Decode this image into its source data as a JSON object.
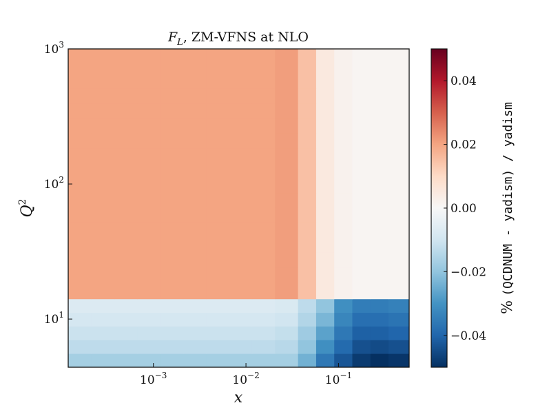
{
  "chart_data": {
    "type": "heatmap",
    "title": "F_L, ZM-VFNS at NLO",
    "title_parts": {
      "symbol": "F",
      "subscript": "L",
      "rest": ", ZM-VFNS at NLO"
    },
    "xlabel": "x",
    "ylabel": "Q",
    "ylabel_superscript": "2",
    "x_scale": "log",
    "y_scale": "log",
    "xlim": [
      0.00012,
      0.58
    ],
    "ylim": [
      4.4,
      1000
    ],
    "x_ticks": [
      {
        "base": "10",
        "exp": "−3",
        "value": 0.001
      },
      {
        "base": "10",
        "exp": "−2",
        "value": 0.01
      },
      {
        "base": "10",
        "exp": "−1",
        "value": 0.1
      }
    ],
    "y_ticks": [
      {
        "base": "10",
        "exp": "1",
        "value": 10
      },
      {
        "base": "10",
        "exp": "2",
        "value": 100
      },
      {
        "base": "10",
        "exp": "3",
        "value": 1000
      }
    ],
    "x_edges": [
      0.00012,
      0.000213,
      0.000377,
      0.000668,
      0.00118,
      0.00209,
      0.00371,
      0.00657,
      0.0116,
      0.0206,
      0.0365,
      0.0573,
      0.0899,
      0.141,
      0.221,
      0.347,
      0.58
    ],
    "y_edges": [
      4.4,
      5.55,
      7.01,
      8.85,
      11.17,
      14.1,
      20,
      24.1,
      31.1,
      40.1,
      51.7,
      66.7,
      86,
      110.9,
      143,
      184.5,
      237.9,
      306.8,
      395.7,
      510.3,
      658.2,
      848.8,
      1000
    ],
    "values": [
      [
        -0.017,
        -0.017,
        -0.017,
        -0.017,
        -0.017,
        -0.017,
        -0.017,
        -0.017,
        -0.017,
        -0.017,
        -0.024,
        -0.036,
        -0.043,
        -0.048,
        -0.05,
        -0.049
      ],
      [
        -0.013,
        -0.013,
        -0.013,
        -0.013,
        -0.013,
        -0.013,
        -0.013,
        -0.013,
        -0.013,
        -0.014,
        -0.02,
        -0.031,
        -0.039,
        -0.044,
        -0.045,
        -0.044
      ],
      [
        -0.011,
        -0.011,
        -0.011,
        -0.011,
        -0.011,
        -0.011,
        -0.011,
        -0.011,
        -0.011,
        -0.012,
        -0.018,
        -0.027,
        -0.036,
        -0.041,
        -0.041,
        -0.04
      ],
      [
        -0.009,
        -0.009,
        -0.009,
        -0.009,
        -0.009,
        -0.009,
        -0.009,
        -0.009,
        -0.009,
        -0.01,
        -0.015,
        -0.023,
        -0.033,
        -0.038,
        -0.038,
        -0.037
      ],
      [
        -0.007,
        -0.007,
        -0.007,
        -0.007,
        -0.007,
        -0.007,
        -0.007,
        -0.007,
        -0.007,
        -0.008,
        -0.013,
        -0.02,
        -0.031,
        -0.035,
        -0.035,
        -0.034
      ],
      [
        0.02,
        0.02,
        0.02,
        0.02,
        0.02,
        0.02,
        0.02,
        0.02,
        0.02,
        0.021,
        0.015,
        0.005,
        0.002,
        0.001,
        0.001,
        0.001
      ],
      [
        0.02,
        0.02,
        0.02,
        0.02,
        0.02,
        0.02,
        0.02,
        0.02,
        0.02,
        0.021,
        0.015,
        0.005,
        0.002,
        0.001,
        0.001,
        0.001
      ],
      [
        0.02,
        0.02,
        0.02,
        0.02,
        0.02,
        0.02,
        0.02,
        0.02,
        0.02,
        0.021,
        0.015,
        0.005,
        0.002,
        0.001,
        0.001,
        0.001
      ],
      [
        0.02,
        0.02,
        0.02,
        0.02,
        0.02,
        0.02,
        0.02,
        0.02,
        0.02,
        0.021,
        0.015,
        0.005,
        0.002,
        0.001,
        0.001,
        0.001
      ],
      [
        0.02,
        0.02,
        0.02,
        0.02,
        0.02,
        0.02,
        0.02,
        0.02,
        0.02,
        0.021,
        0.015,
        0.005,
        0.002,
        0.001,
        0.001,
        0.001
      ],
      [
        0.02,
        0.02,
        0.02,
        0.02,
        0.02,
        0.02,
        0.02,
        0.02,
        0.02,
        0.021,
        0.015,
        0.005,
        0.002,
        0.001,
        0.001,
        0.001
      ],
      [
        0.02,
        0.02,
        0.02,
        0.02,
        0.02,
        0.02,
        0.02,
        0.02,
        0.02,
        0.021,
        0.015,
        0.005,
        0.002,
        0.001,
        0.001,
        0.001
      ],
      [
        0.02,
        0.02,
        0.02,
        0.02,
        0.02,
        0.02,
        0.02,
        0.02,
        0.02,
        0.021,
        0.015,
        0.005,
        0.002,
        0.001,
        0.001,
        0.001
      ],
      [
        0.02,
        0.02,
        0.02,
        0.02,
        0.02,
        0.02,
        0.02,
        0.02,
        0.02,
        0.021,
        0.015,
        0.005,
        0.002,
        0.001,
        0.001,
        0.001
      ],
      [
        0.02,
        0.02,
        0.02,
        0.02,
        0.02,
        0.02,
        0.02,
        0.02,
        0.02,
        0.021,
        0.015,
        0.005,
        0.002,
        0.001,
        0.001,
        0.001
      ],
      [
        0.02,
        0.02,
        0.02,
        0.02,
        0.02,
        0.02,
        0.02,
        0.02,
        0.02,
        0.021,
        0.015,
        0.005,
        0.002,
        0.001,
        0.001,
        0.001
      ],
      [
        0.02,
        0.02,
        0.02,
        0.02,
        0.02,
        0.02,
        0.02,
        0.02,
        0.02,
        0.021,
        0.015,
        0.005,
        0.002,
        0.001,
        0.001,
        0.001
      ],
      [
        0.02,
        0.02,
        0.02,
        0.02,
        0.02,
        0.02,
        0.02,
        0.02,
        0.02,
        0.021,
        0.015,
        0.005,
        0.002,
        0.001,
        0.001,
        0.001
      ],
      [
        0.02,
        0.02,
        0.02,
        0.02,
        0.02,
        0.02,
        0.02,
        0.02,
        0.02,
        0.021,
        0.015,
        0.005,
        0.002,
        0.001,
        0.001,
        0.001
      ],
      [
        0.02,
        0.02,
        0.02,
        0.02,
        0.02,
        0.02,
        0.02,
        0.02,
        0.02,
        0.021,
        0.015,
        0.005,
        0.002,
        0.001,
        0.001,
        0.001
      ],
      [
        0.02,
        0.02,
        0.02,
        0.02,
        0.02,
        0.02,
        0.02,
        0.02,
        0.02,
        0.021,
        0.015,
        0.005,
        0.002,
        0.001,
        0.001,
        0.001
      ],
      [
        0.02,
        0.02,
        0.02,
        0.02,
        0.02,
        0.02,
        0.02,
        0.02,
        0.02,
        0.021,
        0.015,
        0.005,
        0.002,
        0.001,
        0.001,
        0.001
      ]
    ],
    "colorbar": {
      "label_prefix": "%",
      "label": "(QCDNUM - yadism) / yadism",
      "range": [
        -0.05,
        0.05
      ],
      "ticks": [
        "−0.04",
        "−0.02",
        "0.00",
        "0.02",
        "0.04"
      ],
      "tick_values": [
        -0.04,
        -0.02,
        0.0,
        0.02,
        0.04
      ],
      "colormap": "RdBu_r",
      "stops": [
        "#053061",
        "#2166ac",
        "#4393c3",
        "#92c5de",
        "#d1e5f0",
        "#f7f7f7",
        "#fddbc7",
        "#f4a582",
        "#d6604d",
        "#b2182b",
        "#67001f"
      ]
    },
    "grid": false,
    "legend": "none"
  }
}
